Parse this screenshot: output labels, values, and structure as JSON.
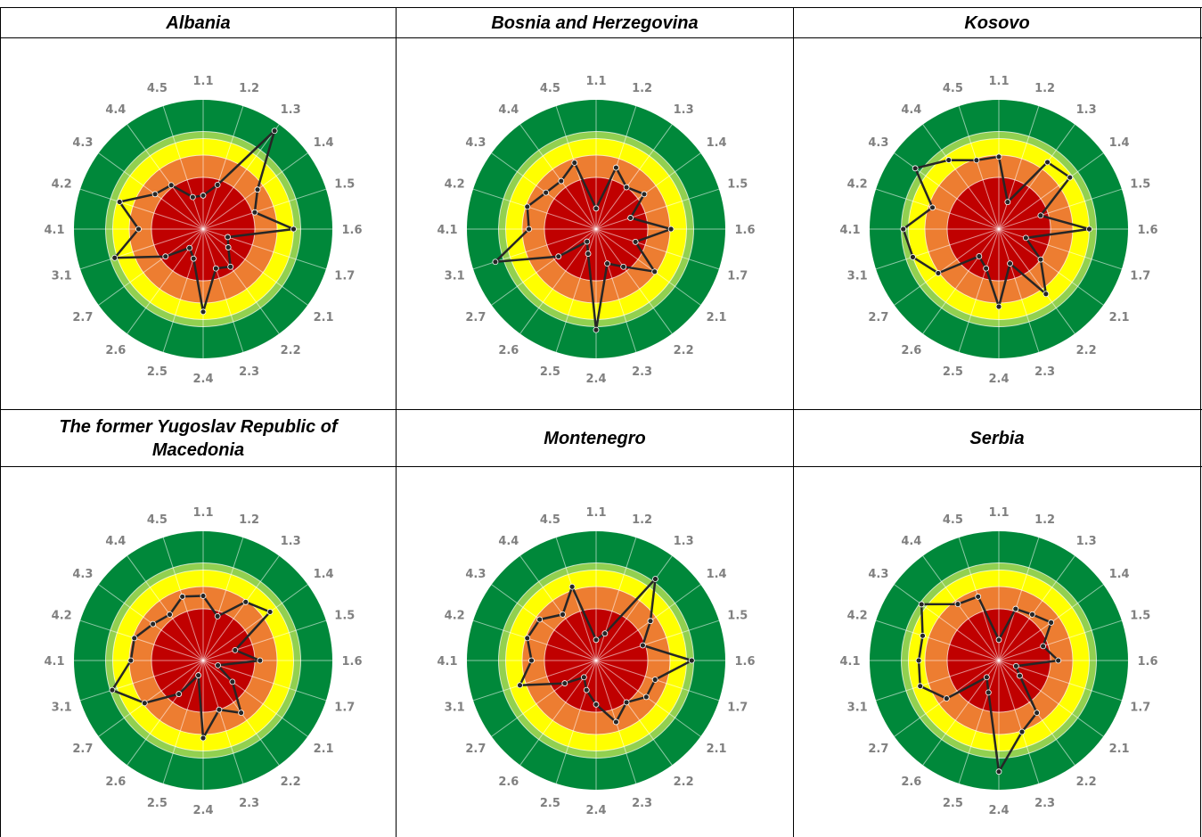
{
  "colors": {
    "ring_dark_green": "#00883a",
    "ring_light_green": "#92d050",
    "ring_yellow": "#ffff00",
    "ring_orange": "#ed7d31",
    "ring_red": "#c00000",
    "line": "#262626",
    "label": "#808080"
  },
  "chart_data": [
    {
      "title": "Albania",
      "type": "radar",
      "axes": [
        "1.1",
        "1.2",
        "1.3",
        "1.4",
        "1.5",
        "1.6",
        "1.7",
        "2.1",
        "2.2",
        "2.3",
        "2.4",
        "2.5",
        "2.6",
        "2.7",
        "3.1",
        "4.1",
        "4.2",
        "4.3",
        "4.4",
        "4.5"
      ],
      "rlim": [
        0,
        5
      ],
      "bands": [
        2,
        3,
        3.5,
        5
      ],
      "values": [
        1.3,
        1.8,
        4.7,
        2.6,
        2.1,
        3.5,
        1.0,
        1.2,
        1.8,
        1.6,
        3.2,
        1.2,
        0.9,
        1.8,
        3.6,
        2.5,
        3.4,
        2.3,
        2.1,
        1.3
      ]
    },
    {
      "title": "Bosnia and Herzegovina",
      "type": "radar",
      "axes": [
        "1.1",
        "1.2",
        "1.3",
        "1.4",
        "1.5",
        "1.6",
        "1.7",
        "2.1",
        "2.2",
        "2.3",
        "2.4",
        "2.5",
        "2.6",
        "2.7",
        "3.1",
        "4.1",
        "4.2",
        "4.3",
        "4.4",
        "4.5"
      ],
      "rlim": [
        0,
        5
      ],
      "bands": [
        2,
        3,
        3.5,
        5
      ],
      "values": [
        0.8,
        2.5,
        2.0,
        2.3,
        1.4,
        2.9,
        1.6,
        2.8,
        1.8,
        1.4,
        3.9,
        1.0,
        0.6,
        1.8,
        4.1,
        2.6,
        2.8,
        2.4,
        2.3,
        2.7
      ]
    },
    {
      "title": "Kosovo",
      "type": "radar",
      "axes": [
        "1.1",
        "1.2",
        "1.3",
        "1.4",
        "1.5",
        "1.6",
        "1.7",
        "2.1",
        "2.2",
        "2.3",
        "2.4",
        "2.5",
        "2.6",
        "2.7",
        "3.1",
        "4.1",
        "4.2",
        "4.3",
        "4.4",
        "4.5"
      ],
      "rlim": [
        0,
        5
      ],
      "bands": [
        2,
        3,
        3.5,
        5
      ],
      "values": [
        2.8,
        1.1,
        3.2,
        3.4,
        1.7,
        3.5,
        1.1,
        2.0,
        3.1,
        1.4,
        3.0,
        1.6,
        1.3,
        2.9,
        3.5,
        3.7,
        2.7,
        4.0,
        3.3,
        2.8
      ]
    },
    {
      "title": "The former Yugoslav Republic of Macedonia",
      "type": "radar",
      "axes": [
        "1.1",
        "1.2",
        "1.3",
        "1.4",
        "1.5",
        "1.6",
        "1.7",
        "2.1",
        "2.2",
        "2.3",
        "2.4",
        "2.5",
        "2.6",
        "2.7",
        "3.1",
        "4.1",
        "4.2",
        "4.3",
        "4.4",
        "4.5"
      ],
      "rlim": [
        0,
        5
      ],
      "bands": [
        2,
        3,
        3.5,
        5
      ],
      "values": [
        2.5,
        1.8,
        2.8,
        3.2,
        1.3,
        2.2,
        0.6,
        1.4,
        2.5,
        2.0,
        3.0,
        0.6,
        1.6,
        2.8,
        3.7,
        2.8,
        2.8,
        2.4,
        2.2,
        2.6
      ]
    },
    {
      "title": "Montenegro",
      "type": "radar",
      "axes": [
        "1.1",
        "1.2",
        "1.3",
        "1.4",
        "1.5",
        "1.6",
        "1.7",
        "2.1",
        "2.2",
        "2.3",
        "2.4",
        "2.5",
        "2.6",
        "2.7",
        "3.1",
        "4.1",
        "4.2",
        "4.3",
        "4.4",
        "4.5"
      ],
      "rlim": [
        0,
        5
      ],
      "bands": [
        2,
        3,
        3.5,
        5
      ],
      "values": [
        0.8,
        1.1,
        3.9,
        2.6,
        1.9,
        3.7,
        2.4,
        2.4,
        2.0,
        2.5,
        1.7,
        1.2,
        0.8,
        1.5,
        3.1,
        2.5,
        2.8,
        2.7,
        2.2,
        3.0
      ]
    },
    {
      "title": "Serbia",
      "type": "radar",
      "axes": [
        "1.1",
        "1.2",
        "1.3",
        "1.4",
        "1.5",
        "1.6",
        "1.7",
        "2.1",
        "2.2",
        "2.3",
        "2.4",
        "2.5",
        "2.6",
        "2.7",
        "3.1",
        "4.1",
        "4.2",
        "4.3",
        "4.4",
        "4.5"
      ],
      "rlim": [
        0,
        5
      ],
      "bands": [
        2,
        3,
        3.5,
        5
      ],
      "values": [
        0.8,
        2.1,
        2.2,
        2.5,
        1.8,
        2.3,
        0.7,
        1.0,
        2.5,
        2.9,
        4.3,
        1.3,
        0.8,
        2.5,
        3.2,
        3.1,
        3.1,
        3.7,
        2.7,
        2.6
      ]
    }
  ]
}
